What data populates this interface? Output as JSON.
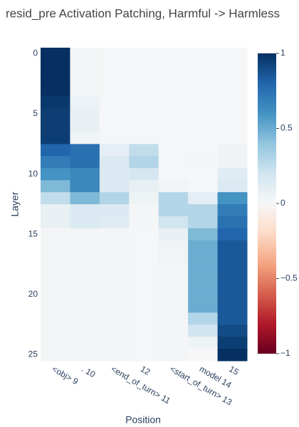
{
  "chart_data": {
    "type": "heatmap",
    "title": "resid_pre Activation Patching, Harmful -> Harmless",
    "x_label": "Position",
    "y_label": "Layer",
    "x": [
      "<obj> 9",
      ". 10",
      "<end_of_turn> 11",
      "12",
      "<start_of_turn> 13",
      "model 14",
      "15"
    ],
    "y": [
      0,
      1,
      2,
      3,
      4,
      5,
      6,
      7,
      8,
      9,
      10,
      11,
      12,
      13,
      14,
      15,
      16,
      17,
      18,
      19,
      20,
      21,
      22,
      23,
      24,
      25
    ],
    "yticks": [
      0,
      5,
      10,
      15,
      20,
      25
    ],
    "z": [
      [
        1.0,
        0.02,
        0.01,
        0.01,
        0.01,
        0.01,
        0.01
      ],
      [
        1.0,
        0.02,
        0.01,
        0.01,
        0.01,
        0.01,
        0.01
      ],
      [
        1.0,
        0.02,
        0.01,
        0.01,
        0.01,
        0.01,
        0.01
      ],
      [
        1.0,
        0.02,
        0.01,
        0.01,
        0.01,
        0.01,
        0.01
      ],
      [
        0.97,
        0.06,
        0.01,
        0.01,
        0.01,
        0.01,
        0.01
      ],
      [
        0.95,
        0.08,
        0.01,
        0.01,
        0.01,
        0.01,
        0.01
      ],
      [
        0.95,
        0.08,
        0.01,
        0.01,
        0.01,
        0.01,
        0.01
      ],
      [
        0.95,
        0.03,
        0.01,
        0.01,
        0.01,
        0.01,
        0.01
      ],
      [
        0.8,
        0.75,
        0.1,
        0.25,
        0.01,
        0.01,
        0.04
      ],
      [
        0.7,
        0.75,
        0.15,
        0.3,
        0.01,
        0.02,
        0.04
      ],
      [
        0.6,
        0.65,
        0.15,
        0.18,
        0.01,
        0.01,
        0.12
      ],
      [
        0.45,
        0.65,
        0.15,
        0.08,
        0.03,
        0.01,
        0.15
      ],
      [
        0.25,
        0.45,
        0.3,
        0.05,
        0.3,
        0.1,
        0.6
      ],
      [
        0.08,
        0.15,
        0.15,
        0.02,
        0.3,
        0.3,
        0.7
      ],
      [
        0.08,
        0.15,
        0.12,
        0.02,
        0.2,
        0.3,
        0.75
      ],
      [
        0.02,
        0.02,
        0.02,
        0.01,
        0.08,
        0.45,
        0.8
      ],
      [
        0.02,
        0.02,
        0.02,
        0.01,
        0.04,
        0.5,
        0.85
      ],
      [
        0.02,
        0.02,
        0.02,
        0.01,
        0.03,
        0.5,
        0.85
      ],
      [
        0.02,
        0.02,
        0.02,
        0.01,
        0.02,
        0.5,
        0.85
      ],
      [
        0.02,
        0.02,
        0.02,
        0.01,
        0.02,
        0.5,
        0.85
      ],
      [
        0.02,
        0.02,
        0.02,
        0.01,
        0.02,
        0.5,
        0.85
      ],
      [
        0.02,
        0.02,
        0.02,
        0.01,
        0.02,
        0.5,
        0.85
      ],
      [
        0.02,
        0.02,
        0.02,
        0.01,
        0.02,
        0.3,
        0.85
      ],
      [
        0.02,
        0.02,
        0.02,
        0.01,
        0.02,
        0.2,
        0.9
      ],
      [
        0.02,
        0.02,
        0.02,
        0.01,
        0.02,
        0.05,
        0.95
      ],
      [
        0.02,
        0.02,
        0.02,
        0.01,
        0.02,
        0.0,
        1.0
      ]
    ],
    "zlim": [
      -1,
      1
    ],
    "colorbar_ticks": [
      1,
      0.5,
      0,
      {
        "value": -0.5,
        "label": "−0.5"
      },
      {
        "value": -1,
        "label": "−1"
      }
    ],
    "colorscale": [
      "#67001f",
      "#b2182b",
      "#d6604d",
      "#f4a582",
      "#fddbc7",
      "#f7f7f7",
      "#d1e5f0",
      "#92c5de",
      "#4393c3",
      "#2166ac",
      "#053061"
    ]
  }
}
